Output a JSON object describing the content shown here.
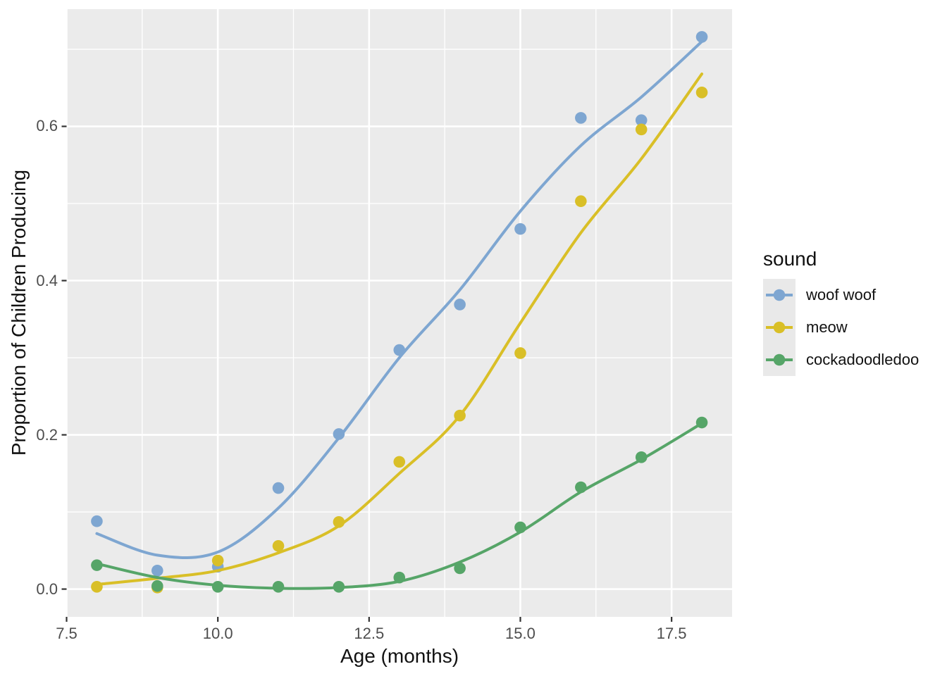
{
  "chart_data": {
    "type": "scatter",
    "title": "",
    "xlabel": "Age (months)",
    "ylabel": "Proportion of Children Producing",
    "x": [
      8,
      9,
      10,
      11,
      12,
      13,
      14,
      15,
      16,
      17,
      18
    ],
    "series": [
      {
        "name": "woof woof",
        "color": "#7EA6D1",
        "points": [
          0.088,
          0.024,
          0.029,
          0.131,
          0.201,
          0.31,
          0.369,
          0.467,
          0.611,
          0.608,
          0.716
        ],
        "smooth": [
          0.072,
          0.044,
          0.048,
          0.105,
          0.196,
          0.3,
          0.388,
          0.49,
          0.575,
          0.638,
          0.71
        ]
      },
      {
        "name": "meow",
        "color": "#D9BF27",
        "points": [
          0.003,
          0.002,
          0.037,
          0.056,
          0.087,
          0.165,
          0.225,
          0.306,
          0.503,
          0.596,
          0.644
        ],
        "smooth": [
          0.006,
          0.014,
          0.024,
          0.047,
          0.082,
          0.15,
          0.225,
          0.345,
          0.462,
          0.558,
          0.668
        ]
      },
      {
        "name": "cockadoodledoo",
        "color": "#56A568",
        "points": [
          0.031,
          0.004,
          0.003,
          0.003,
          0.003,
          0.015,
          0.027,
          0.08,
          0.132,
          0.171,
          0.216
        ],
        "smooth": [
          0.033,
          0.015,
          0.005,
          0.001,
          0.002,
          0.01,
          0.035,
          0.074,
          0.126,
          0.168,
          0.215
        ]
      }
    ],
    "x_ticks": [
      {
        "label": "7.5",
        "value": 7.5
      },
      {
        "label": "10.0",
        "value": 10.0
      },
      {
        "label": "12.5",
        "value": 12.5
      },
      {
        "label": "15.0",
        "value": 15.0
      },
      {
        "label": "17.5",
        "value": 17.5
      }
    ],
    "x_minor_ticks": [
      8.75,
      11.25,
      13.75,
      16.25
    ],
    "y_ticks": [
      {
        "label": "0.0",
        "value": 0.0
      },
      {
        "label": "0.2",
        "value": 0.2
      },
      {
        "label": "0.4",
        "value": 0.4
      },
      {
        "label": "0.6",
        "value": 0.6
      }
    ],
    "y_minor_ticks": [
      0.1,
      0.3,
      0.5,
      0.7
    ],
    "xlim": [
      7.5,
      18.5
    ],
    "ylim": [
      -0.036,
      0.752
    ],
    "grid": "white major and minor gridlines on gray panel",
    "legend_position": "right"
  },
  "legend": {
    "title": "sound",
    "items": [
      {
        "label": "woof woof",
        "color": "#7EA6D1"
      },
      {
        "label": "meow",
        "color": "#D9BF27"
      },
      {
        "label": "cockadoodledoo",
        "color": "#56A568"
      }
    ]
  },
  "colors": {
    "panel_bg": "#EBEBEB",
    "gridline": "#FFFFFF",
    "tick_mark": "#333333",
    "tick_text": "#4D4D4D",
    "axis_title_text": "#111111",
    "legend_key_bg": "#E9E9E9",
    "page_bg": "#FFFFFF"
  }
}
